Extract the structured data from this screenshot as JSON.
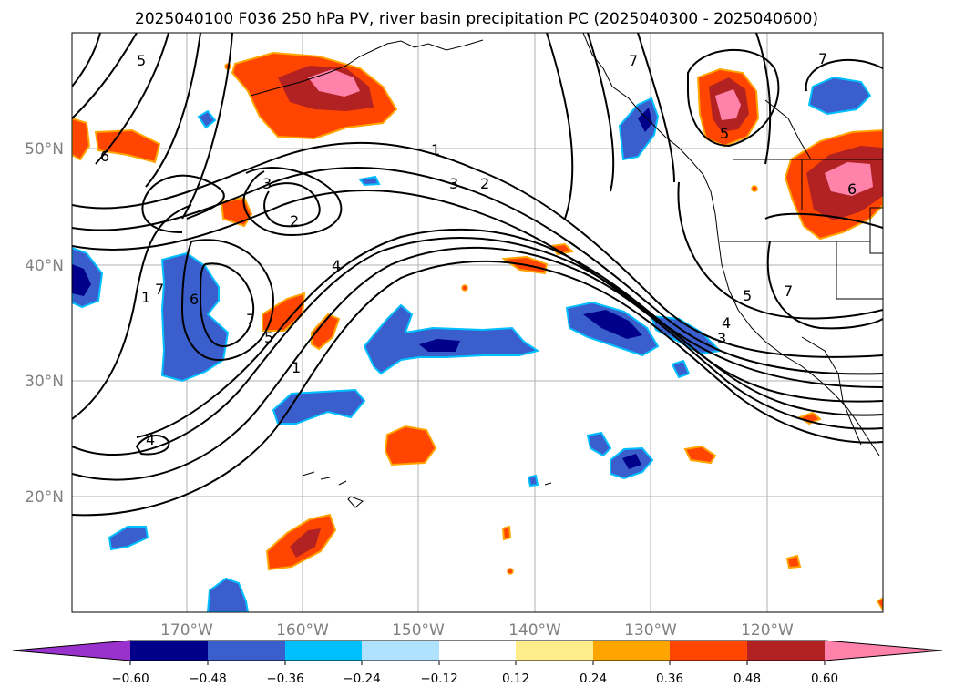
{
  "title": "2025040100 F036 250 hPa PV, river basin precipitation PC (2025040300 - 2025040600)",
  "map": {
    "lat_ticks": [
      "50°N",
      "40°N",
      "30°N",
      "20°N"
    ],
    "lon_ticks": [
      "170°W",
      "160°W",
      "150°W",
      "140°W",
      "130°W",
      "120°W"
    ],
    "contour_labels": [
      "1",
      "2",
      "3",
      "4",
      "5",
      "6",
      "7"
    ]
  },
  "colorbar": {
    "ticks": [
      "−0.60",
      "−0.48",
      "−0.36",
      "−0.24",
      "−0.12",
      "0.12",
      "0.24",
      "0.36",
      "0.48",
      "0.60"
    ],
    "colors": [
      "#9932cc",
      "#00008b",
      "#3a5fcd",
      "#00bfff",
      "#b0e2ff",
      "#ffffff",
      "#ffec8b",
      "#ffa500",
      "#ff4500",
      "#b22222",
      "#ff82ab"
    ]
  }
}
